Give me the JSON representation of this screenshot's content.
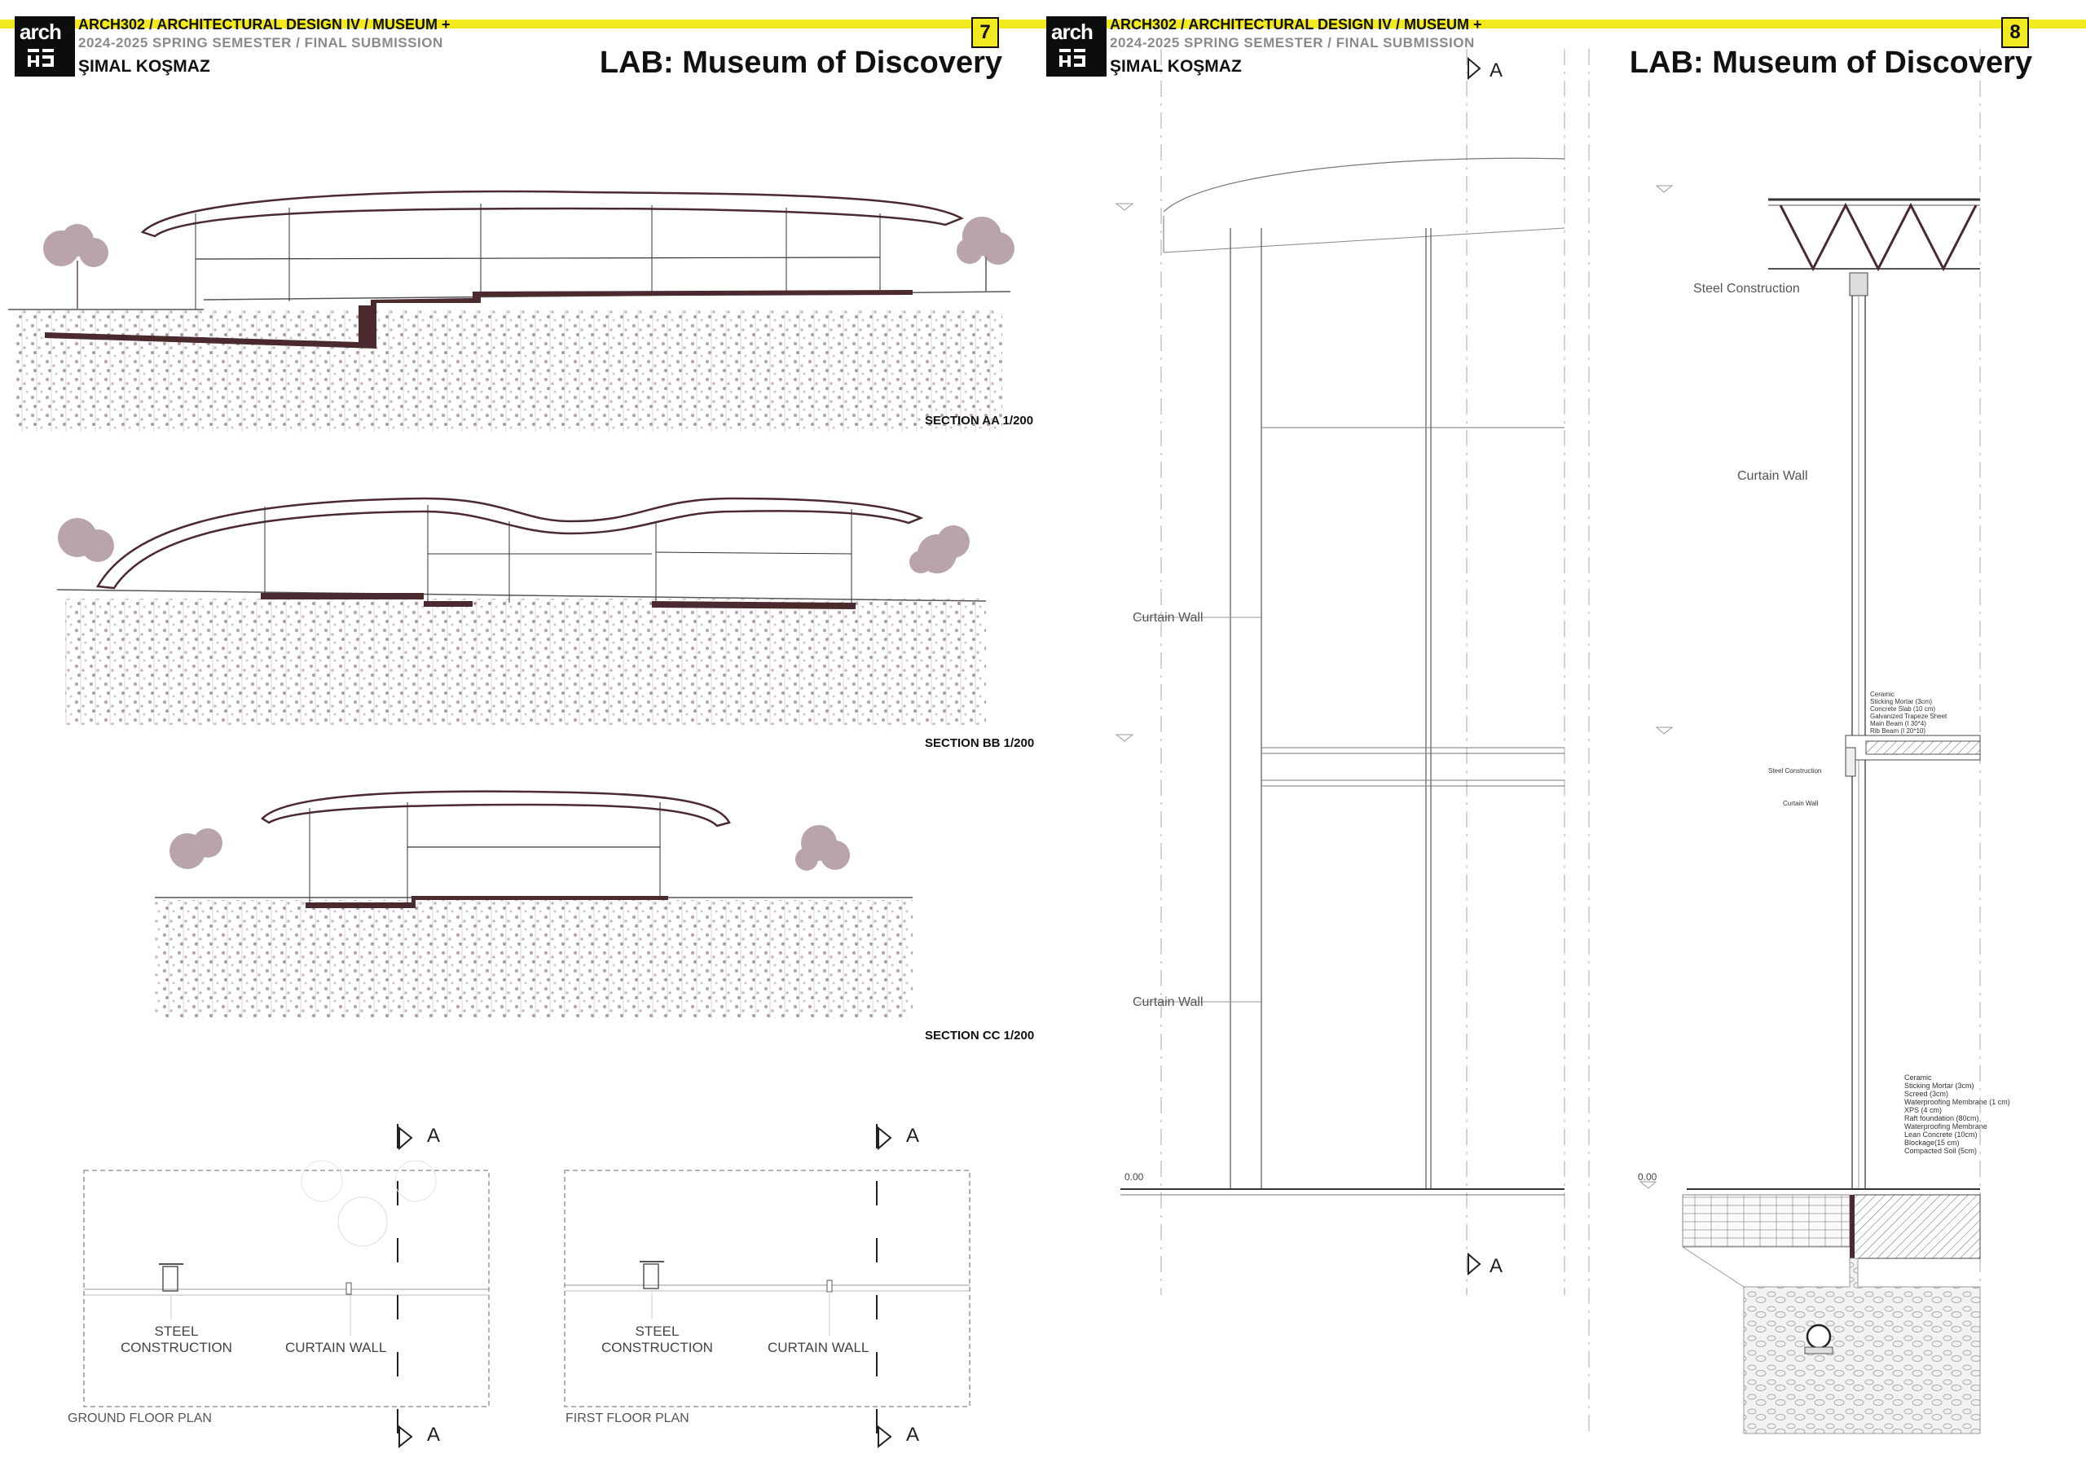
{
  "colors": {
    "accent_yellow": "#f2ea1e",
    "section_fill": "#4a2a2e",
    "vegetation": "#b9a3ad"
  },
  "pages": [
    {
      "course": "ARCH302 / ARCHITECTURAL DESIGN IV / MUSEUM +",
      "semester": "2024-2025 SPRING SEMESTER / FINAL SUBMISSION",
      "author": "ŞIMAL KOŞMAZ",
      "page_number": "7",
      "title": "LAB: Museum of Discovery",
      "logo_text": "arch"
    },
    {
      "course": "ARCH302 / ARCHITECTURAL DESIGN IV / MUSEUM +",
      "semester": "2024-2025 SPRING SEMESTER / FINAL SUBMISSION",
      "author": "ŞIMAL KOŞMAZ",
      "page_number": "8",
      "title": "LAB: Museum of Discovery",
      "logo_text": "arch"
    }
  ],
  "sections": [
    {
      "label": "SECTION AA 1/200"
    },
    {
      "label": "SECTION BB 1/200"
    },
    {
      "label": "SECTION CC 1/200"
    }
  ],
  "plans": [
    {
      "title": "GROUND FLOOR PLAN",
      "steel_label": "STEEL\nCONSTRUCTION",
      "curtain_label": "CURTAIN WALL",
      "marker": "A"
    },
    {
      "title": "FIRST FLOOR PLAN",
      "steel_label": "STEEL\nCONSTRUCTION",
      "curtain_label": "CURTAIN WALL",
      "marker": "A"
    }
  ],
  "elevation": {
    "marker": "A",
    "labels": [
      "Curtain Wall",
      "Curtain Wall"
    ],
    "level": "0.00"
  },
  "detail": {
    "labels": [
      "Steel Construction",
      "Curtain Wall"
    ],
    "small_labels": [
      "Steel Construction",
      "Curtain Wall"
    ],
    "level": "0.00",
    "floor_layers": [
      "Ceramic",
      "Sticking Mortar (3cm)",
      "Concrete Slab (10 cm)",
      "Galvanized Trapeze Sheet",
      "Main Beam (I 30*4)",
      "Rib Beam (I 20*10)"
    ],
    "ground_layers": [
      "Ceramic",
      "Sticking Mortar (3cm)",
      "Screed (3cm)",
      "Waterproofing Membrane (1 cm)",
      "XPS (4 cm)",
      "Raft foundation (80cm)",
      "Waterproofing Membrane",
      "Lean Concrete (10cm)",
      "Blockage(15 cm)",
      "Compacted Soil (5cm)"
    ]
  }
}
